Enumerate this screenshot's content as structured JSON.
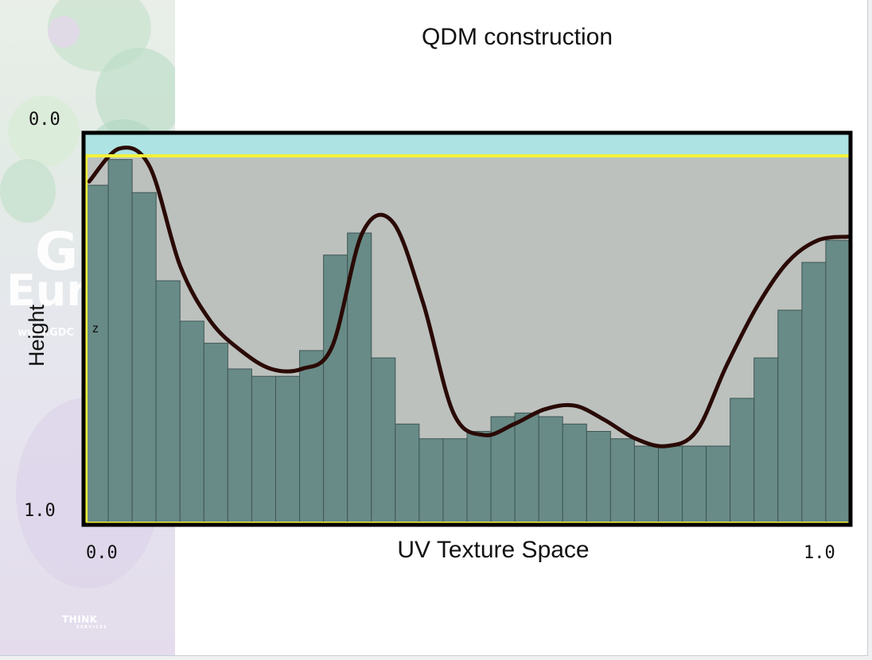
{
  "diagram": {
    "title": "QDM construction",
    "x_axis_title": "UV Texture Space",
    "y_axis_title": "Height",
    "z_label": "z",
    "x_start_label": "0.0",
    "x_end_label": "1.0",
    "y_top_label": "0.0",
    "y_bottom_label": "1.0"
  },
  "decor": {
    "side_line1": "G",
    "side_line2": "Eur",
    "side_line3": "www.GDC",
    "logo_text": "THINK",
    "logo_sub": "SERVICES"
  },
  "chart_data": {
    "type": "bar",
    "x_range": [
      0.0,
      1.0
    ],
    "y_range": [
      0.0,
      1.0
    ],
    "y_inverted": true,
    "bar_heights": [
      0.92,
      0.99,
      0.9,
      0.66,
      0.55,
      0.49,
      0.42,
      0.4,
      0.4,
      0.47,
      0.73,
      0.79,
      0.45,
      0.27,
      0.23,
      0.23,
      0.25,
      0.29,
      0.3,
      0.29,
      0.27,
      0.25,
      0.23,
      0.21,
      0.21,
      0.21,
      0.21,
      0.34,
      0.45,
      0.58,
      0.71,
      0.77
    ],
    "curve_heights": [
      0.93,
      1.02,
      0.97,
      0.7,
      0.55,
      0.47,
      0.42,
      0.42,
      0.48,
      0.79,
      0.82,
      0.6,
      0.3,
      0.24,
      0.27,
      0.31,
      0.32,
      0.28,
      0.23,
      0.21,
      0.25,
      0.43,
      0.59,
      0.71,
      0.77,
      0.78
    ],
    "colors": {
      "bar_fill": "#688b87",
      "bar_stroke": "#3f5553",
      "region_fill": "#bcc1be",
      "top_band": "#ade3e2",
      "outer_box": "#000000",
      "inner_box": "#f2f23a",
      "curve": "#2a0a05"
    }
  }
}
